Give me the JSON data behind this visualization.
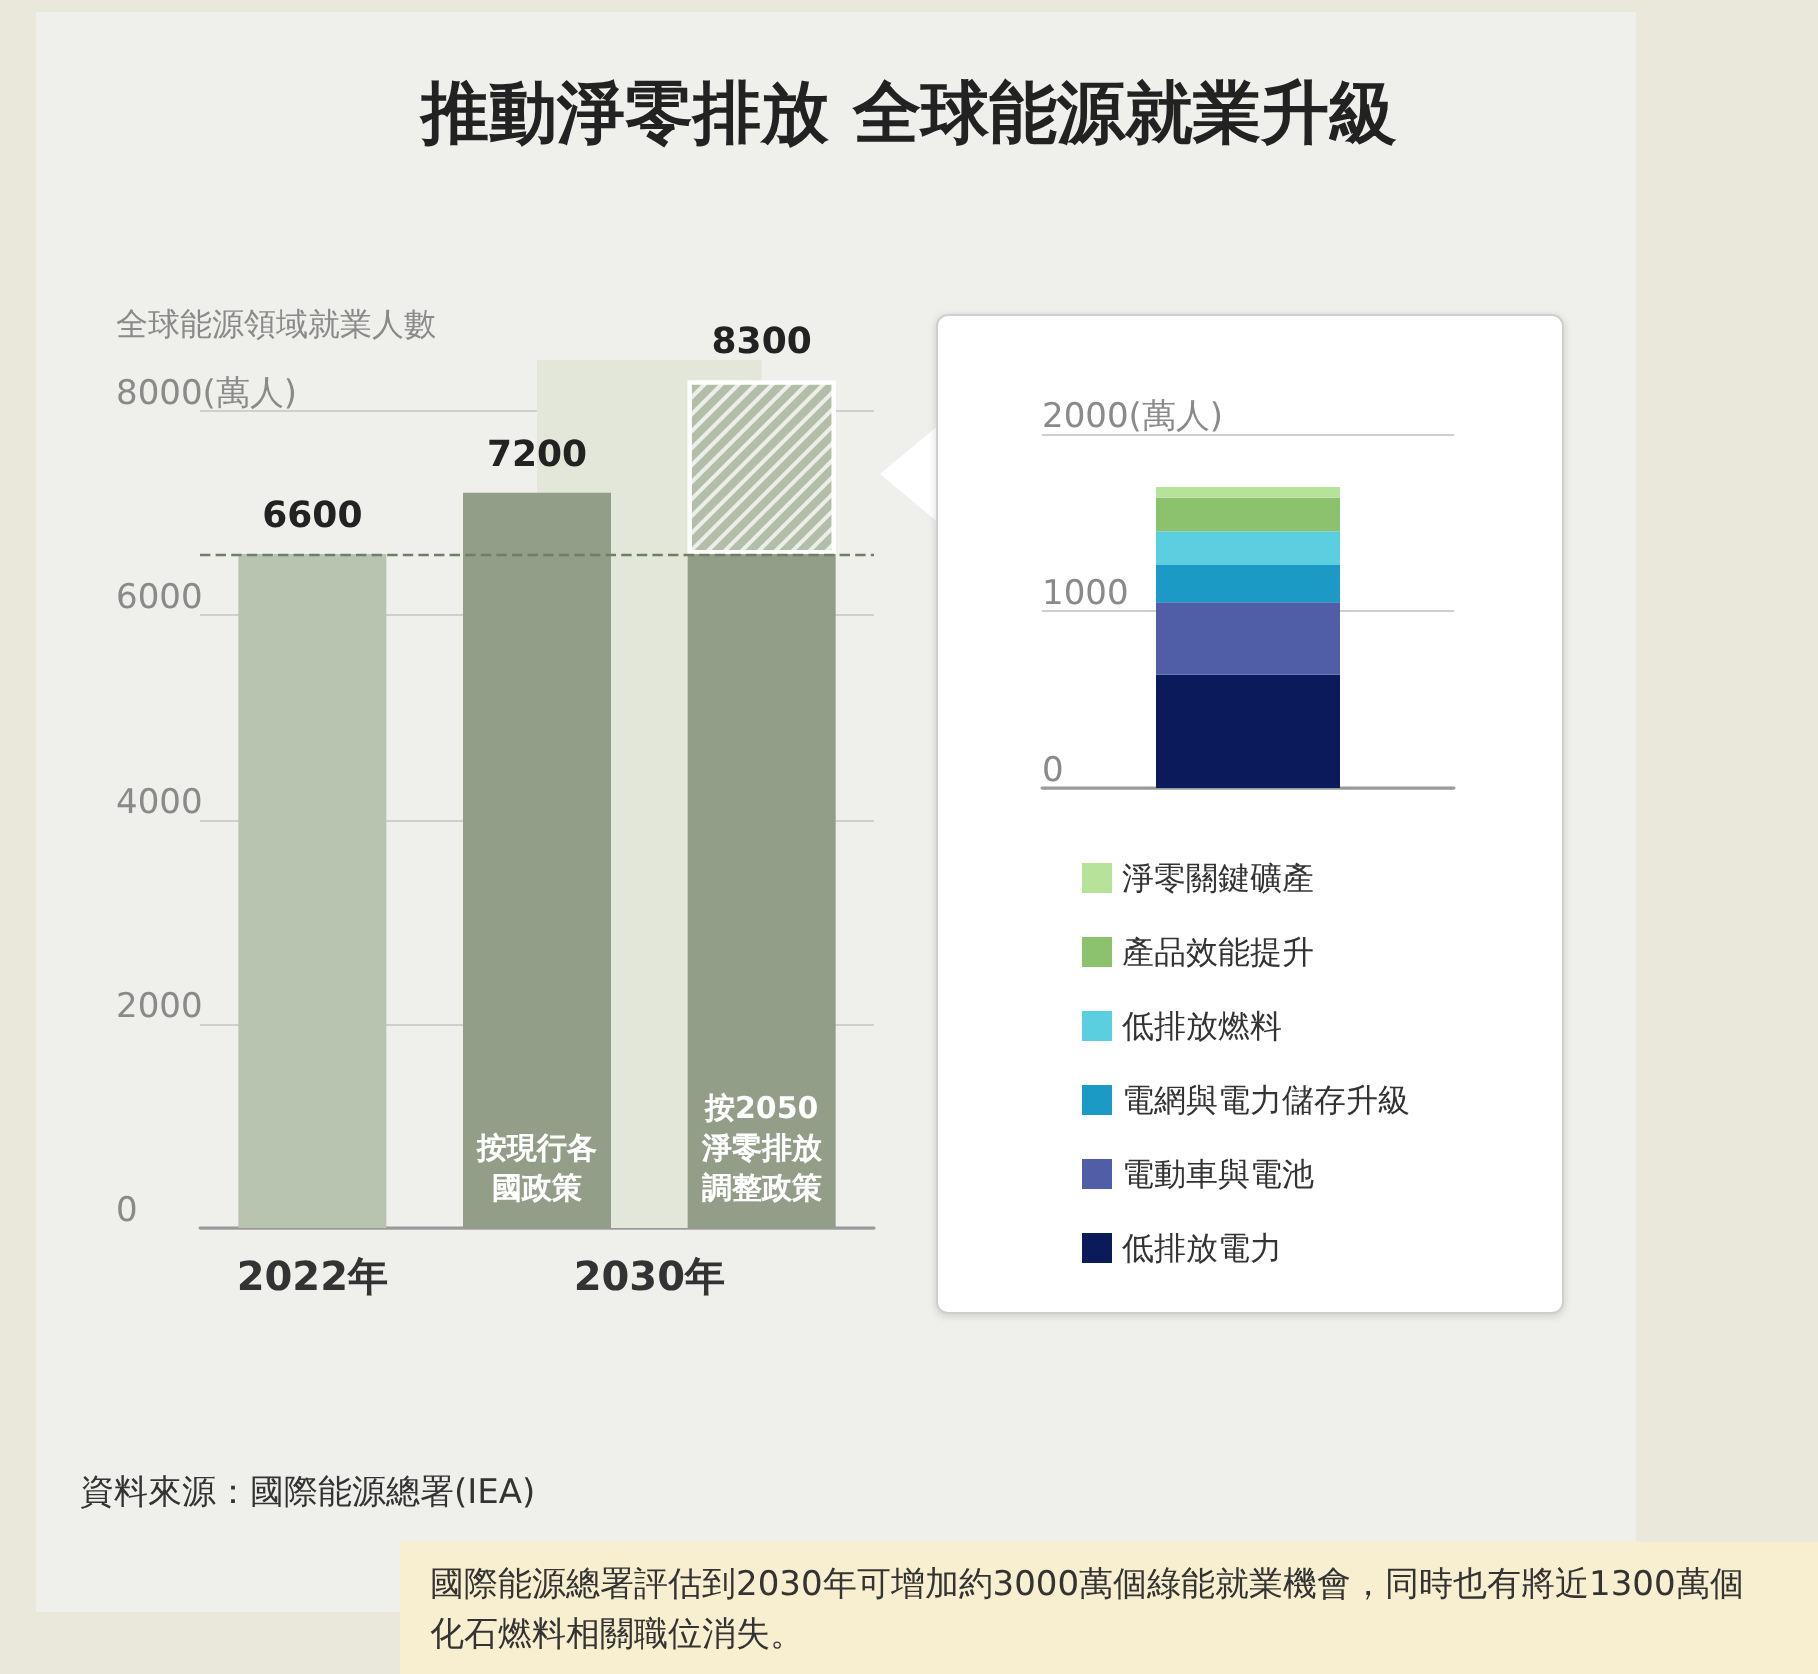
{
  "chart_data": [
    {
      "type": "bar",
      "title": "推動淨零排放 全球能源就業升級",
      "ylabel": "全球能源領域就業人數",
      "categories": [
        "2022年",
        "按現行各國政策",
        "按2050淨零排放調整政策"
      ],
      "stacked": true,
      "series": [
        {
          "colors": [
            "#b8c4b0",
            "#929e88",
            "#929e88"
          ],
          "values": [
            6600,
            7200,
            6600
          ]
        },
        {
          "color": "#b3bea9",
          "values": [
            null,
            null,
            1700
          ]
        }
      ],
      "totals": [
        "6600",
        "7200",
        "8300"
      ],
      "ylim": [
        0,
        8500
      ],
      "yticks": [
        0,
        2000,
        4000,
        6000,
        {
          "value": 8000,
          "label": "8000(萬人)"
        }
      ],
      "grid": "y",
      "legend": false,
      "ref_lines": [
        {
          "axis": "y",
          "value": 6600,
          "color": "#6f7f66",
          "line_style": "dashed"
        }
      ],
      "bands": [
        {
          "axis": "x",
          "from": "按現行各國政策",
          "to": "按2050淨零排放調整政策",
          "color": "#e2e7da"
        }
      ],
      "annotations": [
        "2030年",
        "資料來源：國際能源總署(IEA)",
        "國際能源總署評估到2030年可增加約3000萬個綠能就業機會，同時也有將近1300萬個化石燃料相關職位消失。"
      ]
    },
    {
      "type": "bar",
      "categories": [
        null
      ],
      "stacked": true,
      "series": [
        {
          "name": "低排放電力",
          "color": "#0b1a5a",
          "values": [
            640
          ]
        },
        {
          "name": "電動車與電池",
          "color": "#4f5ea6",
          "values": [
            410
          ]
        },
        {
          "name": "電網與電力儲存升級",
          "color": "#1b9ac6",
          "values": [
            210
          ]
        },
        {
          "name": "低排放燃料",
          "color": "#5bcfe0",
          "values": [
            190
          ]
        },
        {
          "name": "產品效能提升",
          "color": "#8cc26e",
          "values": [
            190
          ]
        },
        {
          "name": "淨零關鍵礦產",
          "color": "#b6e29a",
          "values": [
            60
          ]
        }
      ],
      "ylim": [
        0,
        2000
      ],
      "yticks": [
        0,
        1000,
        {
          "value": 2000,
          "label": "2000(萬人)"
        }
      ],
      "grid": "y",
      "legend": "bottom"
    }
  ]
}
